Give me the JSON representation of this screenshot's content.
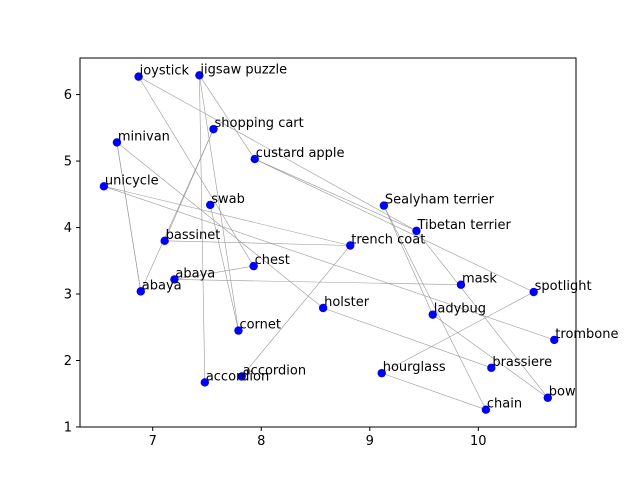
{
  "chart_data": {
    "type": "scatter",
    "title": "",
    "xlabel": "",
    "ylabel": "",
    "xlim": [
      6.33,
      10.9
    ],
    "ylim": [
      1.0,
      6.55
    ],
    "x_ticks": [
      7,
      8,
      9,
      10
    ],
    "y_ticks": [
      1,
      2,
      3,
      4,
      5,
      6
    ],
    "grid": false,
    "legend": "none",
    "point_color": "#0000ff",
    "edge_color": "#999999",
    "points": [
      {
        "label": "joystick",
        "x": 6.87,
        "y": 6.27
      },
      {
        "label": "jigsaw puzzle",
        "x": 7.43,
        "y": 6.29
      },
      {
        "label": "shopping cart",
        "x": 7.56,
        "y": 5.48
      },
      {
        "label": "minivan",
        "x": 6.67,
        "y": 5.28
      },
      {
        "label": "custard apple",
        "x": 7.94,
        "y": 5.03
      },
      {
        "label": "unicycle",
        "x": 6.55,
        "y": 4.62
      },
      {
        "label": "swab",
        "x": 7.53,
        "y": 4.34
      },
      {
        "label": "Sealyham terrier",
        "x": 9.13,
        "y": 4.33
      },
      {
        "label": "Tibetan terrier",
        "x": 9.43,
        "y": 3.95
      },
      {
        "label": "bassinet",
        "x": 7.11,
        "y": 3.8
      },
      {
        "label": "trench coat",
        "x": 8.82,
        "y": 3.73
      },
      {
        "label": "chest",
        "x": 7.93,
        "y": 3.42
      },
      {
        "label": "abaya",
        "x": 7.2,
        "y": 3.22
      },
      {
        "label": "abaya",
        "x": 6.89,
        "y": 3.04
      },
      {
        "label": "mask",
        "x": 9.84,
        "y": 3.14
      },
      {
        "label": "spotlight",
        "x": 10.51,
        "y": 3.03
      },
      {
        "label": "holster",
        "x": 8.57,
        "y": 2.79
      },
      {
        "label": "ladybug",
        "x": 9.58,
        "y": 2.69
      },
      {
        "label": "cornet",
        "x": 7.79,
        "y": 2.45
      },
      {
        "label": "trombone",
        "x": 10.7,
        "y": 2.31
      },
      {
        "label": "brassiere",
        "x": 10.12,
        "y": 1.89
      },
      {
        "label": "hourglass",
        "x": 9.11,
        "y": 1.81
      },
      {
        "label": "accordion",
        "x": 7.82,
        "y": 1.76
      },
      {
        "label": "accordion",
        "x": 7.48,
        "y": 1.67
      },
      {
        "label": "bow",
        "x": 10.64,
        "y": 1.44
      },
      {
        "label": "chain",
        "x": 10.07,
        "y": 1.26
      }
    ],
    "edges": [
      [
        0,
        11
      ],
      [
        0,
        8
      ],
      [
        1,
        23
      ],
      [
        1,
        18
      ],
      [
        2,
        9
      ],
      [
        2,
        13
      ],
      [
        3,
        13
      ],
      [
        3,
        16
      ],
      [
        4,
        15
      ],
      [
        4,
        8
      ],
      [
        5,
        10
      ],
      [
        5,
        19
      ],
      [
        6,
        18
      ],
      [
        7,
        17
      ],
      [
        7,
        25
      ],
      [
        8,
        24
      ],
      [
        9,
        10
      ],
      [
        11,
        12
      ],
      [
        12,
        14
      ],
      [
        13,
        3
      ],
      [
        16,
        20
      ],
      [
        17,
        24
      ],
      [
        21,
        25
      ],
      [
        21,
        15
      ],
      [
        22,
        10
      ],
      [
        1,
        4
      ]
    ]
  }
}
